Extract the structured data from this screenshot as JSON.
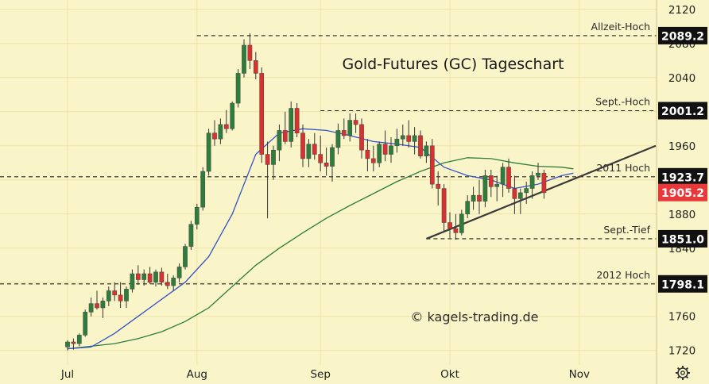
{
  "chart_data": {
    "type": "candlestick",
    "title": "Gold-Futures (GC) Tageschart",
    "watermark": "© kagels-trading.de",
    "y_ticks": [
      1720,
      1760,
      1800,
      1840,
      1880,
      1920,
      1960,
      2000,
      2040,
      2080,
      2120
    ],
    "ylim": [
      1703,
      2131
    ],
    "x_ticks": [
      {
        "label": "Jul",
        "day": 0
      },
      {
        "label": "Aug",
        "day": 22
      },
      {
        "label": "Sep",
        "day": 43
      },
      {
        "label": "Okt",
        "day": 65
      },
      {
        "label": "Nov",
        "day": 87
      }
    ],
    "x_units": "trading days from 1 Jul",
    "levels": [
      {
        "label": "Allzeit-Hoch",
        "value": 2089.2,
        "value_label": "2089.2",
        "start_day": 22
      },
      {
        "label": "Sept.-Hoch",
        "value": 2001.2,
        "value_label": "2001.2",
        "start_day": 43
      },
      {
        "label": "2011 Hoch",
        "value": 1923.7,
        "value_label": "1923.7",
        "start_day": -12
      },
      {
        "label": "Sept.-Tief",
        "value": 1851.0,
        "value_label": "1851.0",
        "start_day": 61
      },
      {
        "label": "2012 Hoch",
        "value": 1798.1,
        "value_label": "1798.1",
        "start_day": -12
      }
    ],
    "last_price": {
      "value": 1905.2,
      "label": "1905.2"
    },
    "trendline": {
      "from": {
        "day": 61,
        "value": 1851
      },
      "to": {
        "day": 100,
        "value": 1960
      }
    },
    "candles": [
      [
        1724,
        1732,
        1720,
        1730
      ],
      [
        1730,
        1734,
        1721,
        1728
      ],
      [
        1728,
        1740,
        1725,
        1738
      ],
      [
        1738,
        1768,
        1736,
        1765
      ],
      [
        1765,
        1782,
        1760,
        1775
      ],
      [
        1775,
        1790,
        1768,
        1770
      ],
      [
        1770,
        1782,
        1758,
        1778
      ],
      [
        1778,
        1795,
        1772,
        1790
      ],
      [
        1790,
        1800,
        1778,
        1785
      ],
      [
        1785,
        1800,
        1770,
        1778
      ],
      [
        1778,
        1795,
        1770,
        1792
      ],
      [
        1792,
        1815,
        1788,
        1810
      ],
      [
        1810,
        1820,
        1797,
        1803
      ],
      [
        1803,
        1815,
        1796,
        1810
      ],
      [
        1810,
        1818,
        1798,
        1800
      ],
      [
        1800,
        1815,
        1795,
        1812
      ],
      [
        1812,
        1817,
        1796,
        1800
      ],
      [
        1800,
        1810,
        1792,
        1796
      ],
      [
        1796,
        1808,
        1790,
        1805
      ],
      [
        1805,
        1822,
        1800,
        1818
      ],
      [
        1818,
        1845,
        1815,
        1842
      ],
      [
        1842,
        1872,
        1838,
        1868
      ],
      [
        1868,
        1892,
        1862,
        1888
      ],
      [
        1888,
        1935,
        1884,
        1930
      ],
      [
        1930,
        1980,
        1925,
        1975
      ],
      [
        1975,
        1990,
        1960,
        1968
      ],
      [
        1968,
        1992,
        1962,
        1985
      ],
      [
        1985,
        2002,
        1975,
        1980
      ],
      [
        1980,
        2012,
        1978,
        2010
      ],
      [
        2010,
        2050,
        2005,
        2045
      ],
      [
        2045,
        2085,
        2040,
        2078
      ],
      [
        2078,
        2092,
        2050,
        2060
      ],
      [
        2060,
        2070,
        2038,
        2045
      ],
      [
        2045,
        2052,
        1940,
        1950
      ],
      [
        1950,
        1965,
        1875,
        1938
      ],
      [
        1938,
        1960,
        1920,
        1955
      ],
      [
        1955,
        1985,
        1942,
        1978
      ],
      [
        1978,
        2000,
        1962,
        1965
      ],
      [
        1965,
        2012,
        1958,
        2004
      ],
      [
        2004,
        2010,
        1970,
        1975
      ],
      [
        1975,
        1985,
        1935,
        1945
      ],
      [
        1945,
        1968,
        1935,
        1962
      ],
      [
        1962,
        1975,
        1944,
        1950
      ],
      [
        1950,
        1972,
        1930,
        1940
      ],
      [
        1940,
        1958,
        1925,
        1936
      ],
      [
        1936,
        1962,
        1918,
        1958
      ],
      [
        1958,
        1986,
        1950,
        1978
      ],
      [
        1978,
        1992,
        1968,
        1972
      ],
      [
        1972,
        1998,
        1965,
        1990
      ],
      [
        1990,
        1998,
        1975,
        1985
      ],
      [
        1985,
        1992,
        1945,
        1955
      ],
      [
        1955,
        1968,
        1930,
        1945
      ],
      [
        1945,
        1960,
        1930,
        1940
      ],
      [
        1940,
        1965,
        1935,
        1962
      ],
      [
        1962,
        1978,
        1942,
        1950
      ],
      [
        1950,
        1970,
        1940,
        1960
      ],
      [
        1960,
        1980,
        1952,
        1968
      ],
      [
        1968,
        1985,
        1960,
        1972
      ],
      [
        1972,
        1990,
        1958,
        1965
      ],
      [
        1965,
        1982,
        1950,
        1972
      ],
      [
        1972,
        1978,
        1945,
        1948
      ],
      [
        1948,
        1965,
        1940,
        1960
      ],
      [
        1960,
        1968,
        1910,
        1915
      ],
      [
        1915,
        1930,
        1890,
        1910
      ],
      [
        1910,
        1915,
        1860,
        1870
      ],
      [
        1870,
        1882,
        1852,
        1863
      ],
      [
        1863,
        1880,
        1850,
        1858
      ],
      [
        1858,
        1885,
        1855,
        1880
      ],
      [
        1880,
        1902,
        1875,
        1895
      ],
      [
        1895,
        1912,
        1885,
        1902
      ],
      [
        1902,
        1920,
        1880,
        1895
      ],
      [
        1895,
        1932,
        1888,
        1925
      ],
      [
        1925,
        1932,
        1900,
        1912
      ],
      [
        1912,
        1925,
        1895,
        1915
      ],
      [
        1915,
        1940,
        1900,
        1935
      ],
      [
        1935,
        1945,
        1905,
        1910
      ],
      [
        1910,
        1925,
        1880,
        1898
      ],
      [
        1898,
        1910,
        1880,
        1905
      ],
      [
        1905,
        1918,
        1892,
        1910
      ],
      [
        1910,
        1930,
        1898,
        1925
      ],
      [
        1925,
        1940,
        1920,
        1928
      ],
      [
        1928,
        1932,
        1898,
        1905
      ]
    ],
    "ma_short": [
      [
        0,
        1722
      ],
      [
        4,
        1724
      ],
      [
        8,
        1740
      ],
      [
        12,
        1760
      ],
      [
        16,
        1780
      ],
      [
        20,
        1800
      ],
      [
        24,
        1830
      ],
      [
        28,
        1880
      ],
      [
        32,
        1950
      ],
      [
        36,
        1975
      ],
      [
        40,
        1980
      ],
      [
        44,
        1978
      ],
      [
        48,
        1972
      ],
      [
        52,
        1965
      ],
      [
        56,
        1962
      ],
      [
        60,
        1958
      ],
      [
        64,
        1935
      ],
      [
        68,
        1925
      ],
      [
        72,
        1920
      ],
      [
        76,
        1910
      ],
      [
        80,
        1915
      ],
      [
        84,
        1925
      ],
      [
        86,
        1928
      ]
    ],
    "ma_long": [
      [
        0,
        1722
      ],
      [
        4,
        1725
      ],
      [
        8,
        1728
      ],
      [
        12,
        1734
      ],
      [
        16,
        1742
      ],
      [
        20,
        1754
      ],
      [
        24,
        1770
      ],
      [
        28,
        1795
      ],
      [
        32,
        1820
      ],
      [
        36,
        1840
      ],
      [
        40,
        1858
      ],
      [
        44,
        1875
      ],
      [
        48,
        1890
      ],
      [
        52,
        1904
      ],
      [
        56,
        1918
      ],
      [
        60,
        1930
      ],
      [
        64,
        1940
      ],
      [
        68,
        1946
      ],
      [
        72,
        1945
      ],
      [
        76,
        1940
      ],
      [
        80,
        1936
      ],
      [
        84,
        1935
      ],
      [
        86,
        1933
      ]
    ]
  },
  "colors": {
    "background": "#faf5c8",
    "up": "#2e7d3c",
    "down": "#d93030",
    "ma_short": "#3552c8",
    "ma_long": "#2e7d3c",
    "grid": "#ede2a8",
    "trendline": "#3a3a3a",
    "last_price_bg": "#e8383a"
  },
  "icons": {
    "settings": "gear-icon"
  }
}
